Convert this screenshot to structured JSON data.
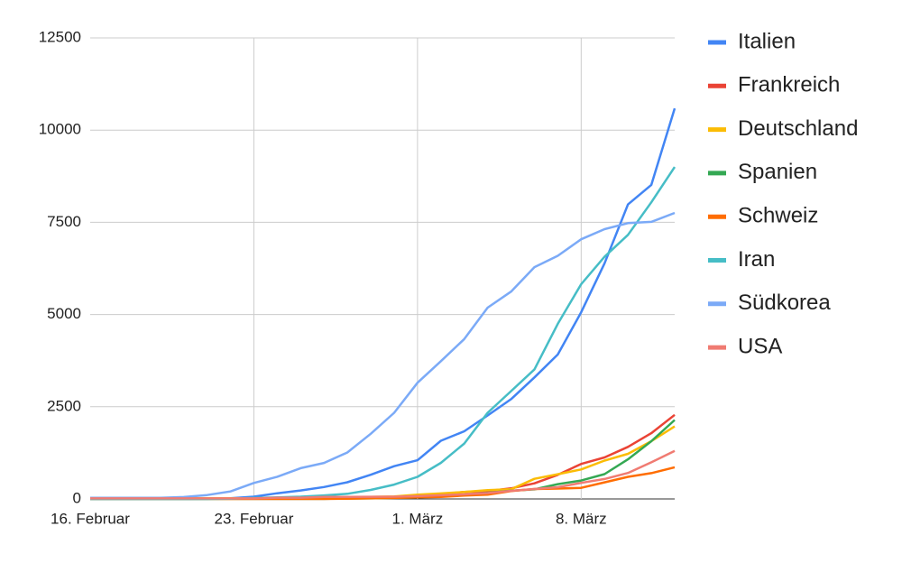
{
  "chart_data": {
    "type": "line",
    "categories": [
      "16. Februar",
      null,
      null,
      null,
      null,
      null,
      null,
      "23. Februar",
      null,
      null,
      null,
      null,
      null,
      null,
      "1. März",
      null,
      null,
      null,
      null,
      null,
      null,
      "8. März",
      null,
      null,
      null,
      null
    ],
    "ylim": [
      0,
      12500
    ],
    "yticks": [
      0,
      2500,
      5000,
      7500,
      10000,
      12500
    ],
    "grid": true,
    "legend": "right",
    "series": [
      {
        "name": "Italien",
        "color": "#4285f4",
        "values": [
          0,
          0,
          0,
          0,
          0,
          3,
          20,
          62,
          155,
          229,
          322,
          453,
          655,
          888,
          1050,
          1577,
          1835,
          2263,
          2706,
          3296,
          3916,
          5061,
          6387,
          7985,
          8514,
          10590
        ]
      },
      {
        "name": "Frankreich",
        "color": "#ea4335",
        "values": [
          12,
          12,
          12,
          12,
          12,
          12,
          12,
          12,
          12,
          12,
          12,
          18,
          38,
          57,
          100,
          130,
          191,
          212,
          285,
          423,
          653,
          949,
          1126,
          1412,
          1784,
          2281
        ]
      },
      {
        "name": "Deutschland",
        "color": "#fbbc04",
        "values": [
          16,
          16,
          16,
          16,
          16,
          16,
          16,
          16,
          16,
          16,
          18,
          26,
          53,
          66,
          117,
          150,
          188,
          240,
          262,
          545,
          670,
          800,
          1040,
          1224,
          1565,
          1966
        ]
      },
      {
        "name": "Spanien",
        "color": "#34a853",
        "values": [
          2,
          2,
          2,
          2,
          2,
          2,
          2,
          2,
          2,
          2,
          2,
          13,
          15,
          32,
          45,
          84,
          120,
          165,
          222,
          259,
          400,
          500,
          673,
          1073,
          1565,
          2140
        ]
      },
      {
        "name": "Schweiz",
        "color": "#ff6d01",
        "values": [
          0,
          0,
          0,
          0,
          0,
          0,
          0,
          0,
          0,
          1,
          1,
          8,
          18,
          27,
          42,
          56,
          90,
          114,
          214,
          268,
          281,
          300,
          450,
          600,
          700,
          858
        ]
      },
      {
        "name": "Iran",
        "color": "#46bdc6",
        "values": [
          0,
          0,
          0,
          0,
          0,
          0,
          5,
          28,
          43,
          61,
          95,
          139,
          245,
          388,
          600,
          978,
          1501,
          2336,
          2922,
          3513,
          4747,
          5823,
          6566,
          7161,
          8042,
          9000
        ]
      },
      {
        "name": "Südkorea",
        "color": "#7baaf7",
        "values": [
          29,
          30,
          31,
          31,
          51,
          104,
          204,
          433,
          602,
          833,
          977,
          1261,
          1766,
          2337,
          3150,
          3736,
          4335,
          5186,
          5621,
          6284,
          6593,
          7041,
          7314,
          7478,
          7513,
          7755
        ]
      },
      {
        "name": "USA",
        "color": "#f07b72",
        "values": [
          15,
          15,
          15,
          15,
          15,
          15,
          15,
          15,
          35,
          35,
          53,
          53,
          59,
          60,
          75,
          100,
          124,
          158,
          221,
          270,
          319,
          435,
          541,
          704,
          994,
          1301
        ]
      }
    ]
  }
}
